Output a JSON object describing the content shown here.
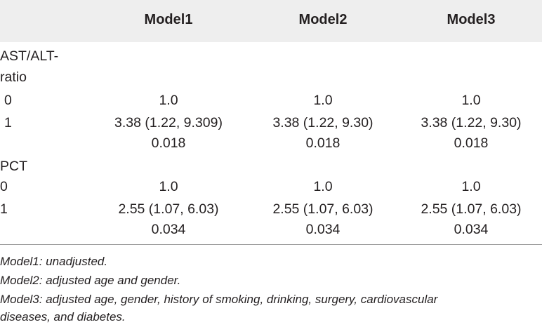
{
  "header": {
    "col1": "Model1",
    "col2": "Model2",
    "col3": "Model3"
  },
  "rows": {
    "ast_title_line1": "AST/ALT-",
    "ast_title_line2": "ratio",
    "ast_0": {
      "label": "0",
      "m1": "1.0",
      "m2": "1.0",
      "m3": "1.0"
    },
    "ast_1": {
      "label": "1",
      "m1": "3.38 (1.22, 9.309)",
      "m2": "3.38 (1.22, 9.30)",
      "m3": "3.38 (1.22, 9.30)"
    },
    "ast_p": {
      "m1": "0.018",
      "m2": "0.018",
      "m3": "0.018"
    },
    "pct_title": "PCT",
    "pct_0": {
      "label": "0",
      "m1": "1.0",
      "m2": "1.0",
      "m3": "1.0"
    },
    "pct_1": {
      "label": "1",
      "m1": "2.55 (1.07, 6.03)",
      "m2": "2.55 (1.07, 6.03)",
      "m3": "2.55 (1.07, 6.03)"
    },
    "pct_p": {
      "m1": "0.034",
      "m2": "0.034",
      "m3": "0.034"
    }
  },
  "notes": {
    "model1": "Model1: unadjusted.",
    "model2": "Model2: adjusted age and gender.",
    "model3_line1": "Model3: adjusted age, gender, history of smoking, drinking, surgery, cardiovascular",
    "model3_line2": "diseases, and diabetes."
  }
}
